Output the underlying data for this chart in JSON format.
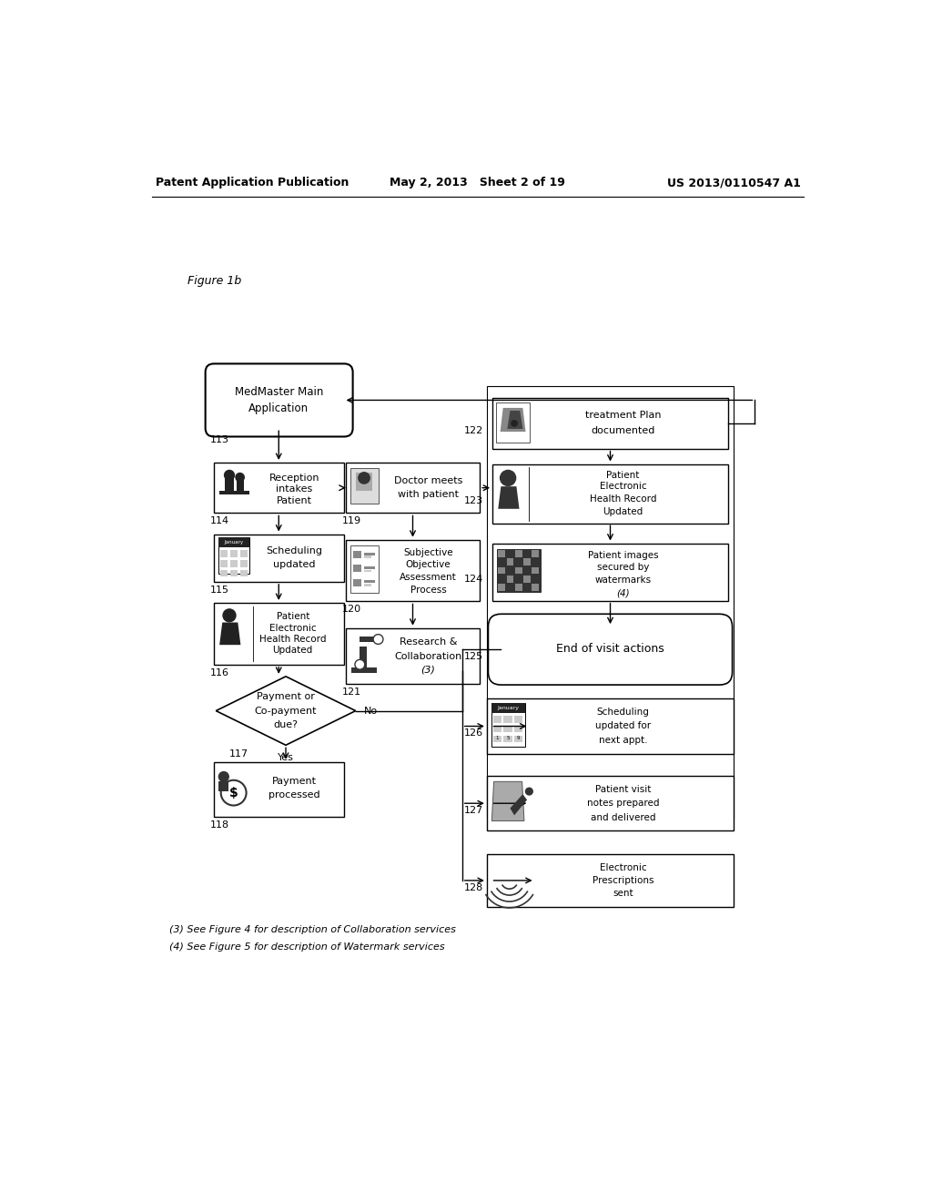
{
  "header_left": "Patent Application Publication",
  "header_center": "May 2, 2013   Sheet 2 of 19",
  "header_right": "US 2013/0110547 A1",
  "figure_label": "Figure 1b",
  "footer_note1": "(3) See Figure 4 for description of Collaboration services",
  "footer_note2": "(4) See Figure 5 for description of Watermark services",
  "bg_color": "#ffffff",
  "text_color": "#000000"
}
